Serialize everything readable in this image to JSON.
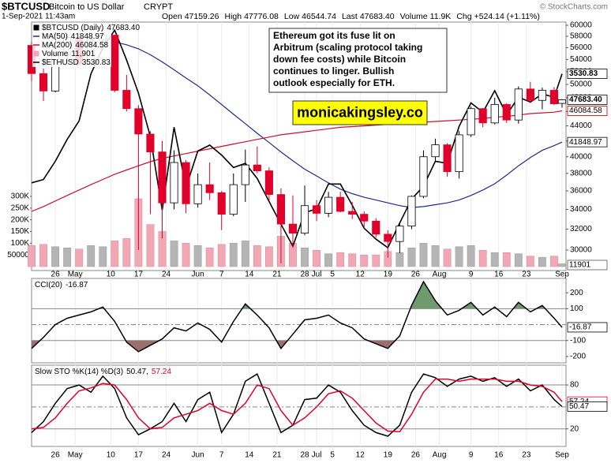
{
  "header": {
    "symbol": "$BTCUSD",
    "name": "Bitcoin to US Dollar",
    "exchange": "CRYPT",
    "credit": "© StockCharts.com",
    "date": "1-Sep-2021 11:43am",
    "quote": [
      {
        "label": "Open",
        "value": "47159.26"
      },
      {
        "label": "High",
        "value": "47776.08"
      },
      {
        "label": "Low",
        "value": "46544.74"
      },
      {
        "label": "Last",
        "value": "47683.40"
      },
      {
        "label": "Volume",
        "value": "11.9K"
      },
      {
        "label": "Chg",
        "value": "+524.14 (+1.11%)"
      }
    ]
  },
  "annotation": {
    "lines": [
      "Ethereum got its fuse lit on",
      "Arbitrum (scaling protocol taking",
      "down fee costs) while Bitcoin",
      "continues to linger. Bullish",
      "outlook especially for ETH."
    ],
    "banner": "monicakingsley.co"
  },
  "chart_data": [
    {
      "type": "candlestick",
      "name": "$BTCUSD (Daily)",
      "last_label": "47683.40",
      "x": [
        0,
        3,
        6,
        9,
        12,
        15,
        18,
        21,
        24,
        27,
        30,
        33,
        36,
        39,
        42,
        45,
        48,
        51,
        54,
        57,
        60,
        63,
        66,
        69,
        72,
        75,
        78,
        81,
        84,
        87,
        90,
        93,
        96,
        99,
        102,
        105,
        108,
        111,
        114,
        117,
        120,
        123,
        126,
        129,
        132,
        134
      ],
      "open": [
        56400,
        51700,
        49000,
        54800,
        57800,
        53300,
        57300,
        58200,
        49100,
        46400,
        42900,
        40600,
        34700,
        39300,
        34600,
        36700,
        35800,
        33500,
        36700,
        39000,
        38300,
        35600,
        32500,
        31600,
        34400,
        33600,
        35300,
        33800,
        33500,
        32800,
        31500,
        30800,
        32300,
        35400,
        40000,
        41500,
        38200,
        42800,
        46400,
        44400,
        47000,
        44800,
        49300,
        47600,
        49100,
        47159.26
      ],
      "high": [
        57000,
        52500,
        55500,
        58400,
        58900,
        58000,
        59500,
        58300,
        51500,
        46900,
        43300,
        42000,
        40800,
        39600,
        38000,
        39300,
        36000,
        38000,
        40900,
        41300,
        38700,
        36300,
        35500,
        36600,
        35000,
        35900,
        35900,
        34800,
        33800,
        33100,
        31900,
        32600,
        35500,
        40800,
        42300,
        41700,
        43300,
        46700,
        46500,
        48000,
        47200,
        49700,
        50400,
        49500,
        49600,
        47776.08
      ],
      "low": [
        50500,
        47500,
        48800,
        53600,
        52900,
        53000,
        56500,
        48800,
        46000,
        30000,
        33500,
        31100,
        34000,
        33600,
        34200,
        35000,
        31900,
        33300,
        34800,
        38000,
        34900,
        28800,
        30200,
        31400,
        32800,
        33200,
        33700,
        33000,
        32200,
        31200,
        29300,
        29700,
        32000,
        35200,
        39500,
        37600,
        37400,
        42500,
        43800,
        44200,
        44400,
        44300,
        47200,
        46300,
        46900,
        46544.74
      ],
      "close": [
        51700,
        49000,
        54800,
        57800,
        53300,
        57300,
        58200,
        49100,
        46400,
        42900,
        40600,
        34700,
        39300,
        34600,
        36700,
        35800,
        33500,
        36700,
        39000,
        38300,
        35600,
        32500,
        31600,
        34400,
        33600,
        35300,
        33800,
        33500,
        32800,
        31500,
        30800,
        32300,
        35400,
        40000,
        41500,
        38200,
        42800,
        46400,
        44400,
        47000,
        44800,
        49300,
        47600,
        49100,
        47100,
        47683.4
      ],
      "up_color": "#000000",
      "down_color": "#e0002a",
      "xlim": [
        0,
        135
      ],
      "xticks": [
        {
          "value": 6,
          "label": "26"
        },
        {
          "value": 11,
          "label": "May"
        },
        {
          "value": 20,
          "label": "10"
        },
        {
          "value": 27,
          "label": "17"
        },
        {
          "value": 34,
          "label": "24"
        },
        {
          "value": 42,
          "label": "Jun"
        },
        {
          "value": 48,
          "label": "7"
        },
        {
          "value": 55,
          "label": "14"
        },
        {
          "value": 62,
          "label": "21"
        },
        {
          "value": 69,
          "label": "28"
        },
        {
          "value": 72,
          "label": "Jul"
        },
        {
          "value": 76,
          "label": "5"
        },
        {
          "value": 83,
          "label": "12"
        },
        {
          "value": 90,
          "label": "19"
        },
        {
          "value": 97,
          "label": "26"
        },
        {
          "value": 103,
          "label": "Aug"
        },
        {
          "value": 111,
          "label": "9"
        },
        {
          "value": 118,
          "label": "16"
        },
        {
          "value": 125,
          "label": "23"
        },
        {
          "value": 134,
          "label": "Sep"
        }
      ],
      "ylim": [
        28160,
        60600
      ],
      "log_scale": true,
      "yticks": [
        30000,
        32000,
        34000,
        36000,
        38000,
        40000,
        42000,
        44000,
        46000,
        48000,
        50000,
        52000,
        54000,
        56000,
        58000,
        60000
      ],
      "y2lim": [
        1668,
        4300
      ],
      "grid": true,
      "overlays": [
        {
          "name": "MA(50)",
          "color": "#1f2a8c",
          "values": [
            null,
            null,
            null,
            null,
            null,
            null,
            null,
            57000,
            56500,
            55800,
            54800,
            53600,
            52300,
            51000,
            49800,
            48400,
            47000,
            45600,
            44300,
            43000,
            41800,
            40600,
            39500,
            38500,
            37700,
            36900,
            36200,
            35700,
            35300,
            35000,
            34700,
            34400,
            34200,
            34300,
            34500,
            34700,
            35000,
            35500,
            36100,
            36800,
            37800,
            38900,
            39900,
            40800,
            41400,
            41848.97
          ]
        },
        {
          "name": "MA(200)",
          "color": "#c8102e",
          "values": [
            33800,
            34300,
            34900,
            35500,
            36100,
            36700,
            37300,
            37900,
            38400,
            38900,
            39400,
            39800,
            40100,
            40400,
            40700,
            41000,
            41300,
            41600,
            41900,
            42200,
            42500,
            42800,
            43000,
            43200,
            43400,
            43600,
            43800,
            43900,
            44000,
            44100,
            44200,
            44300,
            44400,
            44500,
            44600,
            44700,
            44800,
            44900,
            45000,
            45200,
            45300,
            45500,
            45700,
            45800,
            45900,
            46084.58
          ]
        },
        {
          "name": "$ETHUSD",
          "color": "#000000",
          "axis": "y2",
          "values": [
            2330,
            2360,
            2530,
            2750,
            2950,
            3530,
            3900,
            4170,
            3720,
            3280,
            2780,
            2100,
            2880,
            2290,
            2630,
            2690,
            2590,
            2470,
            2510,
            2370,
            2170,
            1990,
            1830,
            2080,
            2110,
            2320,
            2320,
            2140,
            1960,
            1880,
            1820,
            2000,
            2190,
            2300,
            2530,
            2510,
            2890,
            3160,
            3050,
            3310,
            3020,
            3230,
            3170,
            3270,
            3230,
            3530.83
          ]
        }
      ],
      "volume": {
        "name": "Volume",
        "legend_value": "11,901",
        "up_color": "#b5b5b5",
        "down_color": "#f2a7b4",
        "values": [
          90000,
          95000,
          85000,
          80000,
          75000,
          90000,
          85000,
          110000,
          120000,
          290000,
          180000,
          150000,
          110000,
          100000,
          90000,
          80000,
          95000,
          100000,
          110000,
          90000,
          85000,
          130000,
          100000,
          80000,
          70000,
          55000,
          60000,
          55000,
          50000,
          50000,
          65000,
          60000,
          80000,
          100000,
          90000,
          75000,
          85000,
          90000,
          70000,
          60000,
          60000,
          55000,
          45000,
          40000,
          45000,
          11901
        ],
        "vlim": [
          0,
          300000
        ],
        "vticks": [
          50000,
          {
            "value": 100000,
            "label": "100K"
          },
          {
            "value": 150000,
            "label": "150K"
          },
          {
            "value": 200000,
            "label": "200K"
          },
          {
            "value": 250000,
            "label": "250K"
          },
          {
            "value": 300000,
            "label": "300K"
          }
        ]
      }
    },
    {
      "type": "line",
      "title": "CCI(20)",
      "color": "#000000",
      "values": [
        -150,
        -80,
        0,
        40,
        60,
        80,
        110,
        20,
        -110,
        -170,
        -130,
        -90,
        -20,
        -40,
        10,
        -30,
        -110,
        20,
        130,
        60,
        -20,
        -150,
        -60,
        30,
        40,
        60,
        10,
        -20,
        -90,
        -120,
        -150,
        -70,
        120,
        270,
        150,
        60,
        90,
        140,
        60,
        110,
        50,
        140,
        80,
        120,
        40,
        -16.87
      ],
      "ylim": [
        -240,
        290
      ],
      "yticks": [
        -200,
        -100,
        100,
        200
      ],
      "bands": {
        "upper": 100,
        "lower": -100,
        "upper_color": "#6e9a6e",
        "lower_color": "#9c6f6f"
      },
      "midline": 0
    },
    {
      "type": "line",
      "title": "Slow STO %K(14) %D(3)",
      "separator": ",",
      "series": [
        {
          "name": "%K",
          "color": "#000000",
          "values": [
            15,
            30,
            55,
            75,
            80,
            70,
            92,
            75,
            35,
            12,
            20,
            30,
            55,
            30,
            60,
            70,
            15,
            40,
            85,
            95,
            55,
            15,
            25,
            60,
            62,
            80,
            70,
            45,
            25,
            15,
            10,
            25,
            70,
            95,
            90,
            78,
            88,
            92,
            85,
            90,
            78,
            88,
            72,
            80,
            60,
            50.47
          ]
        },
        {
          "name": "%D",
          "color": "#e0002a",
          "values": [
            20,
            22,
            35,
            55,
            72,
            76,
            82,
            80,
            60,
            35,
            20,
            22,
            35,
            40,
            45,
            55,
            45,
            40,
            55,
            80,
            75,
            45,
            25,
            35,
            50,
            68,
            72,
            62,
            45,
            28,
            17,
            16,
            40,
            70,
            88,
            88,
            85,
            88,
            88,
            88,
            85,
            85,
            80,
            78,
            70,
            57.24
          ]
        }
      ],
      "ylim": [
        -4,
        107
      ],
      "yticks": [
        20,
        80
      ],
      "bands": {
        "upper": 80,
        "lower": 20
      },
      "midline": 50
    }
  ]
}
